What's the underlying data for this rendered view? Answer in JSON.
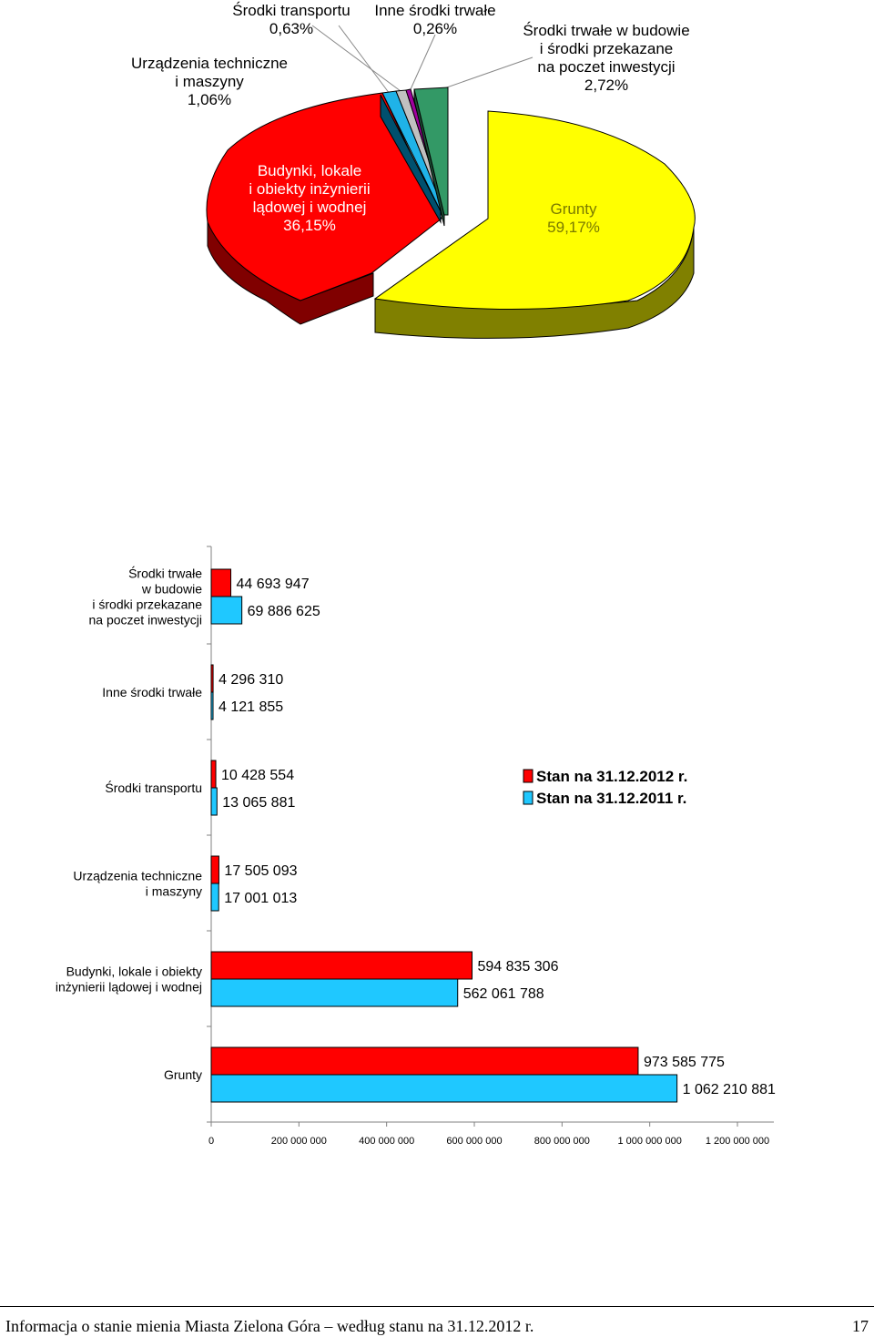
{
  "pie_chart": {
    "type": "pie",
    "slices": [
      {
        "name": "Grunty",
        "value": "59,17%",
        "num": 59.17,
        "color": "#ffff00",
        "side_color": "#808000"
      },
      {
        "name": "Budynki, lokale i obiekty inżynierii lądowej i wodnej",
        "value": "36,15%",
        "num": 36.15,
        "color": "#ff0000",
        "side_color": "#800000"
      },
      {
        "name": "Urządzenia techniczne i maszyny",
        "value": "1,06%",
        "num": 1.06,
        "color": "#1fb3e8",
        "side_color": "#005f80"
      },
      {
        "name": "Środki transportu",
        "value": "0,63%",
        "num": 0.63,
        "color": "#c0c0c0",
        "side_color": "#606060"
      },
      {
        "name": "Inne środki trwałe",
        "value": "0,26%",
        "num": 0.26,
        "color": "#a0009e",
        "side_color": "#500050"
      },
      {
        "name": "Środki trwałe w budowie i środki przekazane na poczet inwestycji",
        "value": "2,72%",
        "num": 2.72,
        "color": "#339966",
        "side_color": "#1a4d33"
      }
    ],
    "labels": {
      "transport": {
        "line1": "Środki transportu",
        "line2": "0,63%"
      },
      "other": {
        "line1": "Inne środki trwałe",
        "line2": "0,26%"
      },
      "construction": {
        "line1": "Środki trwałe w budowie",
        "line2": "i środki przekazane",
        "line3": "na poczet inwestycji",
        "line4": "2,72%"
      },
      "machinery": {
        "line1": "Urządzenia techniczne",
        "line2": "i maszyny",
        "line3": "1,06%"
      },
      "buildings": {
        "line1": "Budynki, lokale",
        "line2": "i obiekty inżynierii",
        "line3": "lądowej i wodnej",
        "line4": "36,15%"
      },
      "land": {
        "line1": "Grunty",
        "line2": "59,17%"
      }
    }
  },
  "chart_data": {
    "type": "bar",
    "orientation": "horizontal",
    "categories": [
      [
        "Środki trwałe",
        "w budowie",
        "i środki przekazane",
        "na poczet inwestycji"
      ],
      [
        "Inne środki trwałe"
      ],
      [
        "Środki transportu"
      ],
      [
        "Urządzenia techniczne",
        "i maszyny"
      ],
      [
        "Budynki, lokale i obiekty",
        "inżynierii lądowej i wodnej"
      ],
      [
        "Grunty"
      ]
    ],
    "series": [
      {
        "name": "Stan na 31.12.2012 r.",
        "color": "#ff0000",
        "values": [
          44693947,
          4296310,
          10428554,
          17505093,
          594835306,
          973585775
        ],
        "labels": [
          "44 693 947",
          "4 296 310",
          "10 428 554",
          "17 505 093",
          "594 835 306",
          "973 585 775"
        ]
      },
      {
        "name": "Stan na 31.12.2011 r.",
        "color": "#1fc8ff",
        "values": [
          69886625,
          4121855,
          13065881,
          17001013,
          562061788,
          1062210881
        ],
        "labels": [
          "69 886 625",
          "4 121 855",
          "13 065 881",
          "17 001 013",
          "562 061 788",
          "1 062 210 881"
        ]
      }
    ],
    "xlim": [
      0,
      1200000000
    ],
    "xticks": [
      0,
      200000000,
      400000000,
      600000000,
      800000000,
      1000000000,
      1200000000
    ],
    "xtick_labels": [
      "0",
      "200 000 000",
      "400 000 000",
      "600 000 000",
      "800 000 000",
      "1 000 000 000",
      "1 200 000 000"
    ],
    "legend_position": "right"
  },
  "footer": {
    "text": "Informacja o stanie mienia Miasta Zielona Góra – według stanu na 31.12.2012 r.",
    "page": "17"
  }
}
